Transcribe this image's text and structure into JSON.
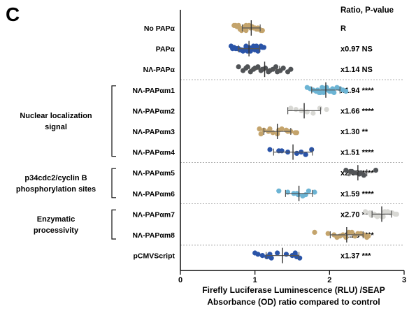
{
  "panel_label": "C",
  "chart_data": {
    "type": "scatter",
    "title": "",
    "xlabel_line1": "Firefly Luciferase Luminescence (RLU) /SEAP",
    "xlabel_line2": "Absorbance (OD) ratio compared to control",
    "xlim": [
      0,
      3
    ],
    "x_ticks": [
      "0",
      "1",
      "2",
      "3"
    ],
    "ratio_header": "Ratio, P-value",
    "rows": [
      {
        "label": "No PAPα",
        "ratio": "R",
        "color": "#c4a46c",
        "points": [
          0.72,
          0.76,
          0.8,
          0.84,
          0.88,
          0.92,
          0.96,
          1.0,
          1.04,
          1.08,
          0.78,
          0.86,
          0.94,
          1.02,
          1.1,
          0.74,
          0.9,
          0.98,
          1.06,
          0.82,
          0.88,
          0.96,
          1.04,
          0.8
        ],
        "mean": 0.95,
        "sd": 0.12
      },
      {
        "label": "PAPα",
        "ratio": "x0.97 NS",
        "color": "#2a54a8",
        "points": [
          0.68,
          0.72,
          0.76,
          0.8,
          0.84,
          0.88,
          0.92,
          0.96,
          1.0,
          1.04,
          1.08,
          1.12,
          0.74,
          0.82,
          0.9,
          0.98,
          1.06,
          0.78,
          0.86,
          0.94,
          1.02,
          1.1,
          0.7,
          0.88
        ],
        "mean": 0.92,
        "sd": 0.14
      },
      {
        "label": "NΛ-PAPα",
        "ratio": "x1.14 NS",
        "color": "#505356",
        "points": [
          0.78,
          0.88,
          0.98,
          1.08,
          1.18,
          1.28,
          1.38,
          1.48,
          0.84,
          0.94,
          1.04,
          1.14,
          1.24,
          1.34,
          1.44,
          0.9,
          1.0,
          1.1,
          1.2,
          1.3
        ],
        "mean": 1.13,
        "sd": 0.2
      },
      {
        "label": "NΛ-PAPαm1",
        "ratio": "x1.94 ****",
        "color": "#6cb4d4",
        "points": [
          1.7,
          1.74,
          1.78,
          1.82,
          1.86,
          1.9,
          1.94,
          1.98,
          2.02,
          2.06,
          2.1,
          2.14,
          2.18,
          2.22,
          1.88,
          1.96,
          2.04,
          1.84,
          2.0,
          1.92
        ],
        "mean": 1.95,
        "sd": 0.19
      },
      {
        "label": "NΛ-PAPαm2",
        "ratio": "x1.66 ****",
        "color": "#d8d8d4",
        "points": [
          1.48,
          1.55,
          1.62,
          1.7,
          1.78,
          1.87,
          1.96
        ],
        "mean": 1.66,
        "sd": 0.22
      },
      {
        "label": "NΛ-PAPαm3",
        "ratio": "x1.30 **",
        "color": "#c4a46c",
        "points": [
          1.06,
          1.12,
          1.18,
          1.24,
          1.3,
          1.36,
          1.42,
          1.48,
          1.54,
          1.08,
          1.2,
          1.32,
          1.44,
          1.56
        ],
        "mean": 1.3,
        "sd": 0.18
      },
      {
        "label": "NΛ-PAPαm4",
        "ratio": "x1.51 ****",
        "color": "#2a54a8",
        "points": [
          1.2,
          1.32,
          1.44,
          1.56,
          1.68,
          1.76,
          1.36,
          1.62
        ],
        "mean": 1.51,
        "sd": 0.26
      },
      {
        "label": "NΛ-PAPαm5",
        "ratio": "x2.38 ****",
        "color": "#505356",
        "points": [
          2.22,
          2.28,
          2.34,
          2.4,
          2.46,
          2.62,
          2.3,
          2.42
        ],
        "mean": 2.38,
        "sd": 0.12
      },
      {
        "label": "NΛ-PAPαm6",
        "ratio": "x1.59 ****",
        "color": "#6cb4d4",
        "points": [
          1.32,
          1.44,
          1.52,
          1.58,
          1.64,
          1.72,
          1.8,
          1.56,
          1.68
        ],
        "mean": 1.59,
        "sd": 0.18
      },
      {
        "label": "NΛ-PAPαm7",
        "ratio": "x2.70 ****",
        "color": "#d8d8d4",
        "points": [
          2.48,
          2.54,
          2.6,
          2.66,
          2.72,
          2.78,
          2.84,
          2.9,
          2.56,
          2.64,
          2.74,
          2.82,
          2.88,
          2.62,
          2.7
        ],
        "mean": 2.7,
        "sd": 0.13
      },
      {
        "label": "NΛ-PAPαm8",
        "ratio": "x2.23 ****",
        "color": "#c4a46c",
        "points": [
          1.8,
          1.98,
          2.06,
          2.14,
          2.22,
          2.3,
          2.38,
          2.46,
          2.52,
          2.1,
          2.26,
          2.42,
          2.18,
          2.34,
          2.5
        ],
        "mean": 2.23,
        "sd": 0.22
      },
      {
        "label": "pCMVScript",
        "ratio": "x1.37 ***",
        "color": "#2a54a8",
        "points": [
          1.0,
          1.04,
          1.1,
          1.16,
          1.22,
          1.3,
          1.42,
          1.5,
          1.56,
          1.6,
          1.54,
          1.2
        ],
        "mean": 1.37,
        "sd": 0.22
      }
    ],
    "groups": [
      {
        "lines": [
          "Nuclear localization",
          "signal"
        ],
        "from_row": 3,
        "to_row": 6
      },
      {
        "lines": [
          "p34cdc2/cyclin B",
          "phosphorylation sites"
        ],
        "from_row": 7,
        "to_row": 8
      },
      {
        "lines": [
          "Enzymatic",
          "processivity"
        ],
        "from_row": 9,
        "to_row": 10
      }
    ],
    "dividers_after_rows": [
      2,
      6,
      8,
      10
    ]
  }
}
